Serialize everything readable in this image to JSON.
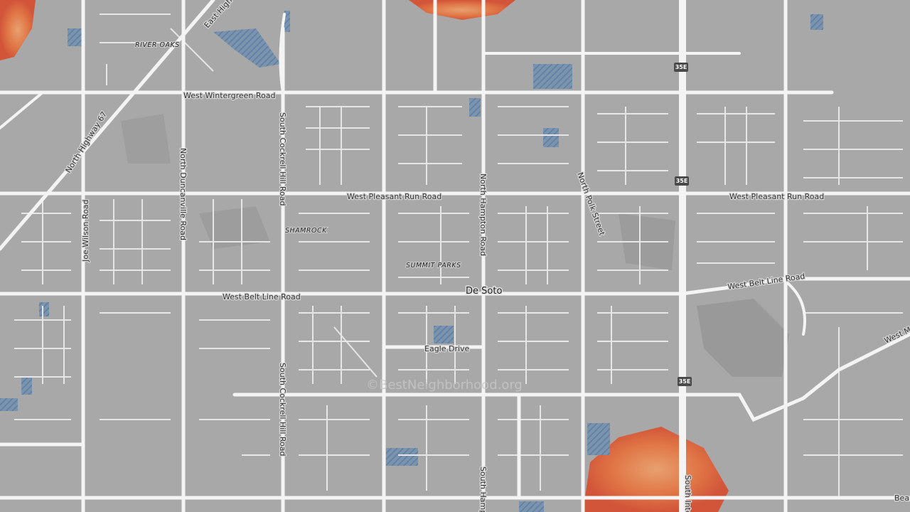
{
  "labels": {
    "east_highway": "East High",
    "river_oaks": "RIVER OAKS",
    "wintergreen": "West Wintergreen Road",
    "north_highway_67": "North Highway 67",
    "north_duncanville": "North Duncanville Road",
    "cockrell_north": "South Cockrell Hill Road",
    "cockrell_south": "South Cockrell Hill Road",
    "joe_wilson": "Joe Wilson Road",
    "pleasant_run_west": "West Pleasant Run Road",
    "pleasant_run_east": "West Pleasant Run Road",
    "north_hampton": "North Hampton Road",
    "north_polk": "North Polk Street",
    "shamrock": "SHAMROCK",
    "summit_parks": "SUMMIT PARKS",
    "de_soto": "De Soto",
    "belt_line_west": "West Belt Line Road",
    "belt_line_east": "West Belt Line Road",
    "eagle_drive": "Eagle Drive",
    "south_hampton": "South Hamp",
    "south_interstate": "South Inte",
    "west_m": "West M",
    "bear": "Bear",
    "watermark": "©BestNeighborhood.org"
  },
  "shields": [
    "35E",
    "35E",
    "35E"
  ]
}
